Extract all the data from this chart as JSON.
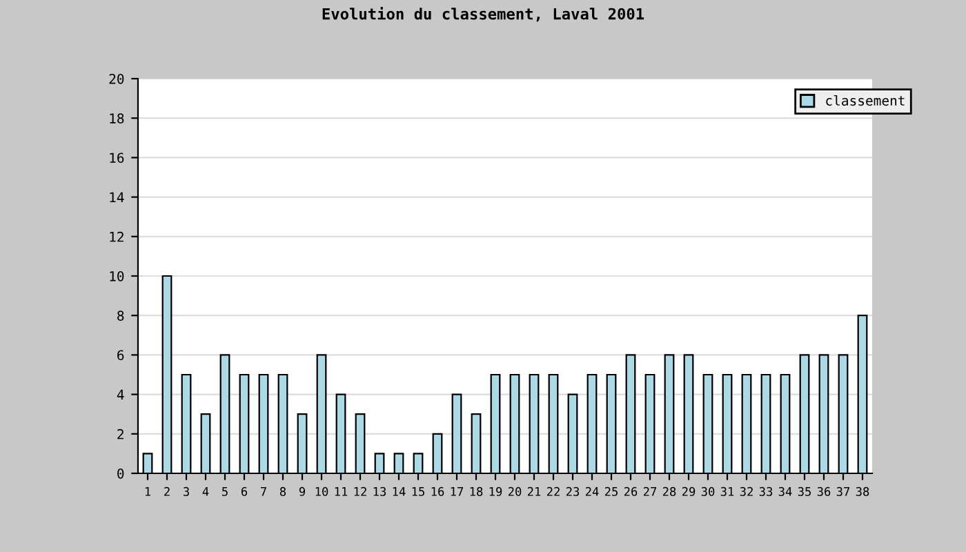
{
  "chart_data": {
    "type": "bar",
    "title": "Evolution du classement, Laval 2001",
    "categories": [
      "1",
      "2",
      "3",
      "4",
      "5",
      "6",
      "7",
      "8",
      "9",
      "10",
      "11",
      "12",
      "13",
      "14",
      "15",
      "16",
      "17",
      "18",
      "19",
      "20",
      "21",
      "22",
      "23",
      "24",
      "25",
      "26",
      "27",
      "28",
      "29",
      "30",
      "31",
      "32",
      "33",
      "34",
      "35",
      "36",
      "37",
      "38"
    ],
    "series": [
      {
        "name": "classement",
        "color": "#add8e6",
        "values": [
          1,
          10,
          5,
          3,
          6,
          5,
          5,
          5,
          3,
          6,
          4,
          3,
          1,
          1,
          1,
          2,
          4,
          3,
          5,
          5,
          5,
          5,
          4,
          5,
          5,
          6,
          5,
          6,
          6,
          5,
          5,
          5,
          5,
          5,
          6,
          6,
          6,
          8
        ]
      }
    ],
    "ylim": [
      0,
      20
    ],
    "yticks": [
      0,
      2,
      4,
      6,
      8,
      10,
      12,
      14,
      16,
      18,
      20
    ],
    "grid": "y",
    "legend": "top right"
  }
}
